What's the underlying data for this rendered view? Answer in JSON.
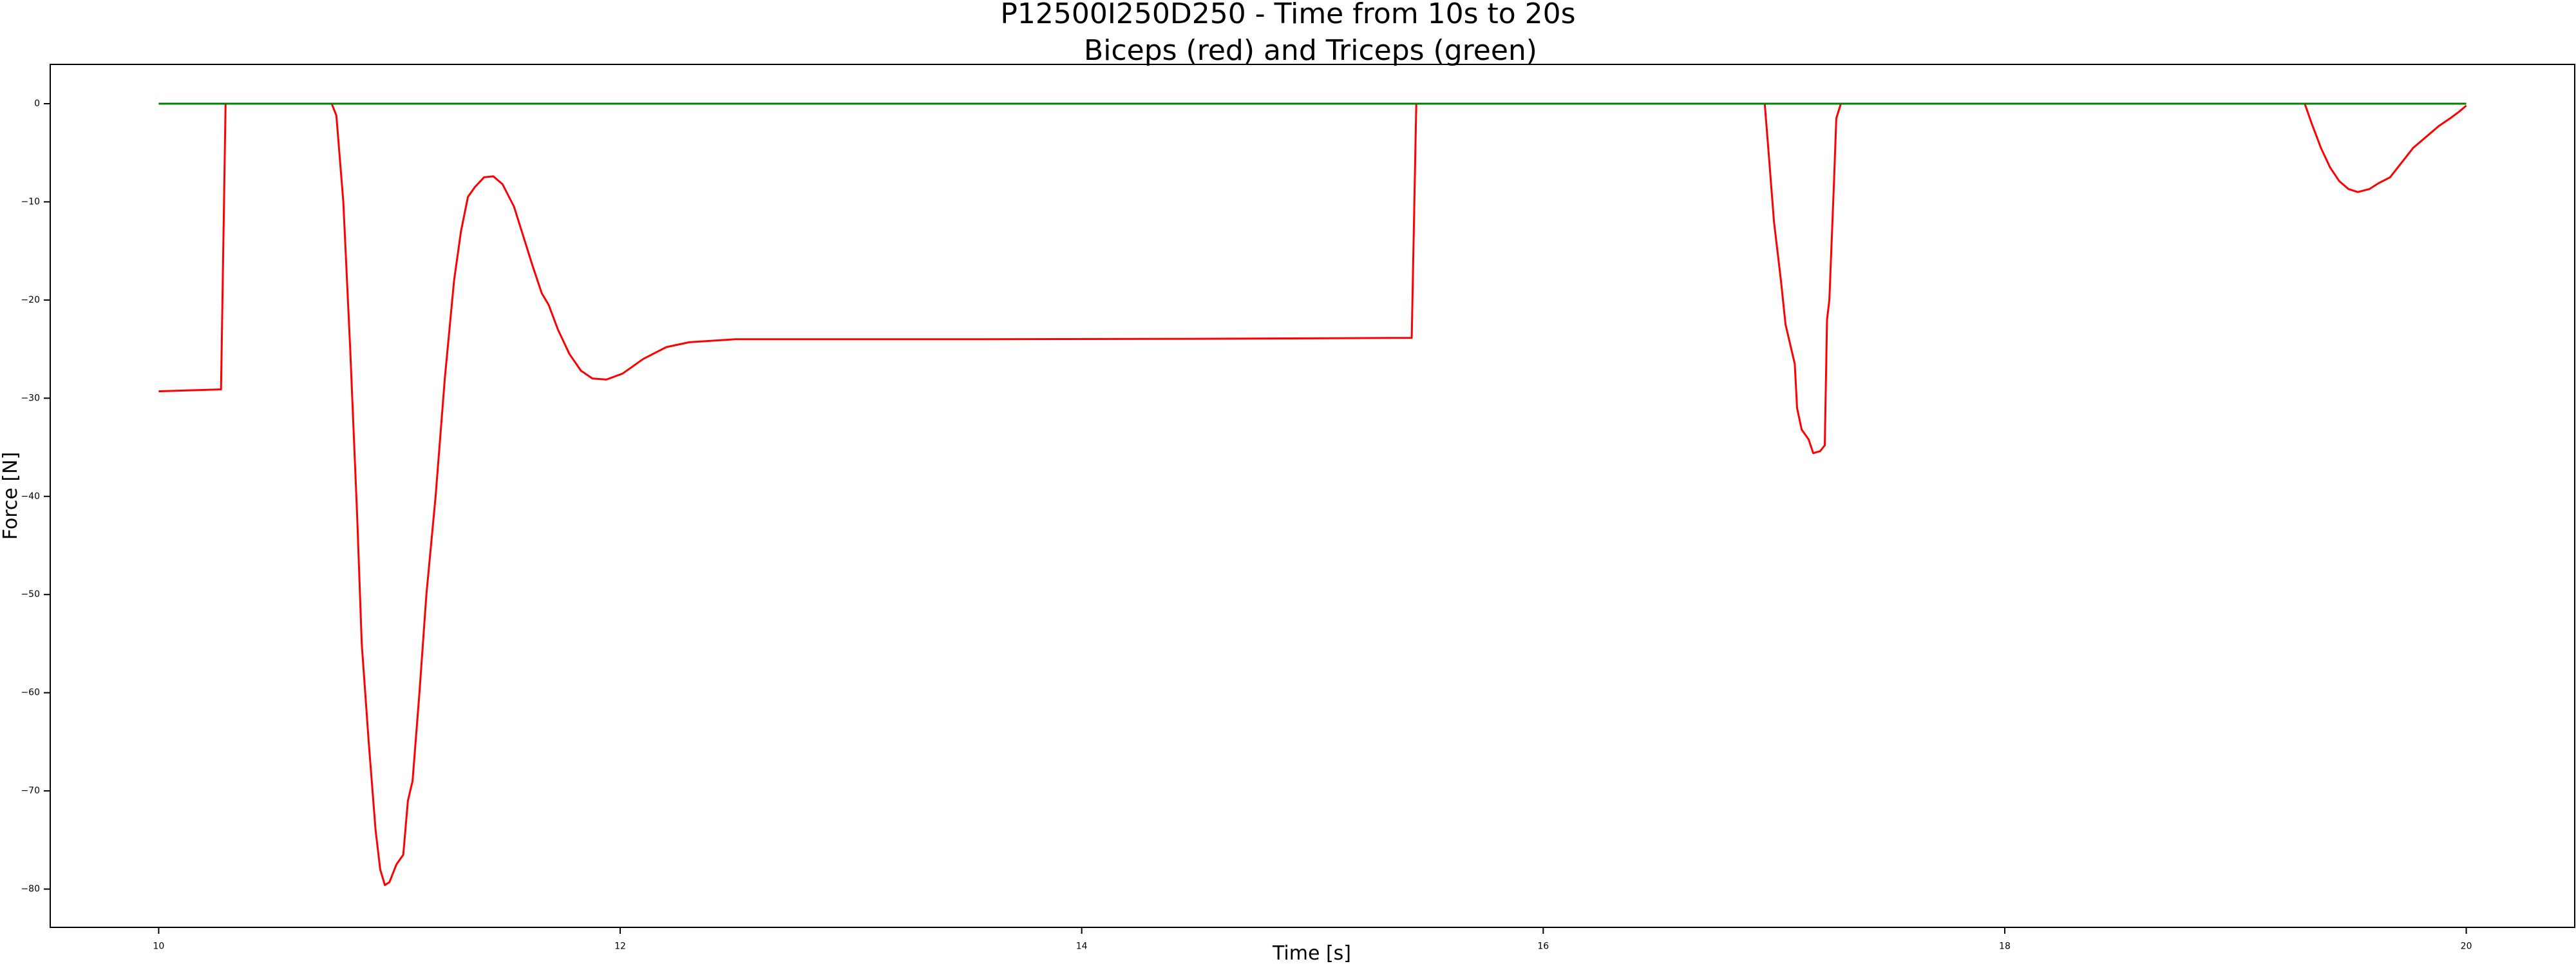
{
  "chart_data": {
    "type": "line",
    "title_lines": [
      "P12500I250D250 - Time from 10s to 20s",
      "Biceps (red) and Triceps (green)"
    ],
    "xlabel": "Time [s]",
    "ylabel": "Force [N]",
    "xlim": [
      9.53,
      20.47
    ],
    "ylim": [
      -83.9,
      4.0
    ],
    "xticks": [
      10,
      12,
      14,
      16,
      18,
      20
    ],
    "yticks": [
      0,
      -10,
      -20,
      -30,
      -40,
      -50,
      -60,
      -70,
      -80
    ],
    "xtick_labels": [
      "10",
      "12",
      "14",
      "16",
      "18",
      "20"
    ],
    "ytick_labels": [
      "0",
      "−10",
      "−20",
      "−30",
      "−40",
      "−50",
      "−60",
      "−70",
      "−80"
    ],
    "grid": false,
    "legend": "none",
    "series": [
      {
        "color": "#ff0000",
        "points": [
          [
            10.0,
            -29.3
          ],
          [
            10.27,
            -29.1
          ],
          [
            10.29,
            0.0
          ],
          [
            10.75,
            0.0
          ],
          [
            10.77,
            -1.2
          ],
          [
            10.8,
            -10
          ],
          [
            10.83,
            -25
          ],
          [
            10.86,
            -42
          ],
          [
            10.88,
            -55
          ],
          [
            10.91,
            -65
          ],
          [
            10.94,
            -74
          ],
          [
            10.96,
            -78
          ],
          [
            10.98,
            -79.6
          ],
          [
            11.0,
            -79.3
          ],
          [
            11.03,
            -77.5
          ],
          [
            11.06,
            -76.5
          ],
          [
            11.08,
            -71
          ],
          [
            11.1,
            -69
          ],
          [
            11.13,
            -60
          ],
          [
            11.16,
            -50
          ],
          [
            11.2,
            -40
          ],
          [
            11.24,
            -28
          ],
          [
            11.28,
            -18
          ],
          [
            11.31,
            -13
          ],
          [
            11.34,
            -9.5
          ],
          [
            11.37,
            -8.5
          ],
          [
            11.41,
            -7.5
          ],
          [
            11.45,
            -7.4
          ],
          [
            11.49,
            -8.2
          ],
          [
            11.54,
            -10.5
          ],
          [
            11.58,
            -13.5
          ],
          [
            11.62,
            -16.5
          ],
          [
            11.66,
            -19.3
          ],
          [
            11.69,
            -20.5
          ],
          [
            11.73,
            -23
          ],
          [
            11.78,
            -25.5
          ],
          [
            11.83,
            -27.2
          ],
          [
            11.88,
            -28
          ],
          [
            11.94,
            -28.1
          ],
          [
            12.01,
            -27.5
          ],
          [
            12.1,
            -26
          ],
          [
            12.2,
            -24.8
          ],
          [
            12.3,
            -24.3
          ],
          [
            12.5,
            -24.0
          ],
          [
            12.7,
            -24.0
          ],
          [
            13.5,
            -24.0
          ],
          [
            14.5,
            -23.95
          ],
          [
            15.43,
            -23.85
          ],
          [
            15.45,
            0.0
          ],
          [
            16.96,
            0.0
          ],
          [
            16.98,
            -6
          ],
          [
            17.0,
            -12
          ],
          [
            17.03,
            -18
          ],
          [
            17.05,
            -22.5
          ],
          [
            17.09,
            -26.5
          ],
          [
            17.1,
            -31
          ],
          [
            17.12,
            -33.2
          ],
          [
            17.15,
            -34.2
          ],
          [
            17.17,
            -35.6
          ],
          [
            17.2,
            -35.4
          ],
          [
            17.22,
            -34.8
          ],
          [
            17.23,
            -22
          ],
          [
            17.24,
            -20
          ],
          [
            17.26,
            -8
          ],
          [
            17.27,
            -1.5
          ],
          [
            17.29,
            0.0
          ],
          [
            19.3,
            0.0
          ],
          [
            19.33,
            -2
          ],
          [
            19.37,
            -4.5
          ],
          [
            19.41,
            -6.5
          ],
          [
            19.45,
            -7.9
          ],
          [
            19.49,
            -8.7
          ],
          [
            19.53,
            -9.0
          ],
          [
            19.58,
            -8.7
          ],
          [
            19.62,
            -8.1
          ],
          [
            19.67,
            -7.5
          ],
          [
            19.72,
            -6
          ],
          [
            19.77,
            -4.5
          ],
          [
            19.83,
            -3.3
          ],
          [
            19.88,
            -2.3
          ],
          [
            19.93,
            -1.5
          ],
          [
            19.97,
            -0.8
          ],
          [
            20.0,
            -0.2
          ]
        ]
      },
      {
        "color": "#008000",
        "points": [
          [
            10.0,
            0.0
          ],
          [
            20.0,
            0.0
          ]
        ]
      }
    ]
  }
}
